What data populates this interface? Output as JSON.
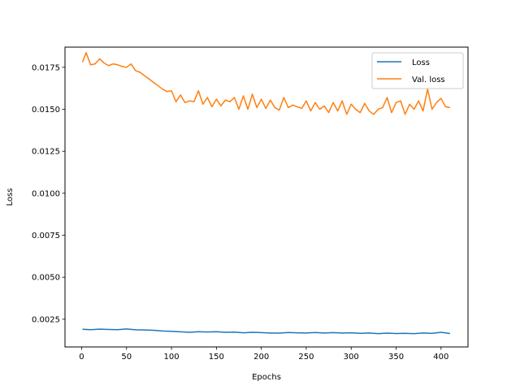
{
  "chart_data": {
    "type": "line",
    "xlabel": "Epochs",
    "ylabel": "Loss",
    "xlim": [
      -18.5,
      430
    ],
    "ylim": [
      0.00085,
      0.0187
    ],
    "xticks": [
      0,
      50,
      100,
      150,
      200,
      250,
      300,
      350,
      400
    ],
    "yticks": [
      0.0025,
      0.005,
      0.0075,
      0.01,
      0.0125,
      0.015,
      0.0175
    ],
    "ytick_labels": [
      "0.0025",
      "0.0050",
      "0.0075",
      "0.0100",
      "0.0125",
      "0.0150",
      "0.0175"
    ],
    "grid": false,
    "legend_position": "top-right",
    "series": [
      {
        "name": "Loss",
        "color": "#1f77b4",
        "x": [
          1,
          10,
          20,
          30,
          40,
          50,
          60,
          70,
          80,
          90,
          100,
          110,
          120,
          130,
          140,
          150,
          160,
          170,
          180,
          190,
          200,
          210,
          220,
          230,
          240,
          250,
          260,
          270,
          280,
          290,
          300,
          310,
          320,
          330,
          340,
          350,
          360,
          370,
          380,
          390,
          400,
          410
        ],
        "y": [
          0.0019,
          0.00188,
          0.00191,
          0.00189,
          0.00188,
          0.00192,
          0.00187,
          0.00186,
          0.00184,
          0.0018,
          0.00178,
          0.00175,
          0.00172,
          0.00176,
          0.00174,
          0.00176,
          0.00172,
          0.00173,
          0.00169,
          0.00172,
          0.0017,
          0.00168,
          0.00167,
          0.00171,
          0.00169,
          0.00168,
          0.00171,
          0.00168,
          0.0017,
          0.00168,
          0.00169,
          0.00166,
          0.00168,
          0.00164,
          0.00167,
          0.00165,
          0.00166,
          0.00164,
          0.00168,
          0.00166,
          0.00172,
          0.00165
        ]
      },
      {
        "name": "Val. loss",
        "color": "#ff7f0e",
        "x": [
          1,
          5,
          10,
          15,
          20,
          25,
          30,
          35,
          40,
          45,
          50,
          55,
          60,
          65,
          70,
          75,
          80,
          85,
          90,
          95,
          100,
          105,
          110,
          115,
          120,
          125,
          130,
          135,
          140,
          145,
          150,
          155,
          160,
          165,
          170,
          175,
          180,
          185,
          190,
          195,
          200,
          205,
          210,
          215,
          220,
          225,
          230,
          235,
          240,
          245,
          250,
          255,
          260,
          265,
          270,
          275,
          280,
          285,
          290,
          295,
          300,
          305,
          310,
          315,
          320,
          325,
          330,
          335,
          340,
          345,
          350,
          355,
          360,
          365,
          370,
          375,
          380,
          385,
          390,
          395,
          400,
          405,
          410
        ],
        "y": [
          0.0178,
          0.01837,
          0.01765,
          0.0177,
          0.018,
          0.01775,
          0.0176,
          0.0177,
          0.01765,
          0.01755,
          0.0175,
          0.0177,
          0.0173,
          0.0172,
          0.017,
          0.0168,
          0.0166,
          0.0164,
          0.0162,
          0.01605,
          0.0161,
          0.01545,
          0.01585,
          0.0154,
          0.0155,
          0.01545,
          0.0161,
          0.0153,
          0.0157,
          0.01515,
          0.0156,
          0.0152,
          0.01555,
          0.01545,
          0.0157,
          0.015,
          0.0158,
          0.015,
          0.0159,
          0.0151,
          0.0156,
          0.01505,
          0.01555,
          0.0151,
          0.01495,
          0.0157,
          0.0151,
          0.01525,
          0.01515,
          0.01505,
          0.0155,
          0.0149,
          0.0154,
          0.015,
          0.0152,
          0.0148,
          0.0154,
          0.0149,
          0.0155,
          0.0147,
          0.0153,
          0.015,
          0.0148,
          0.01535,
          0.0149,
          0.0147,
          0.015,
          0.0151,
          0.0157,
          0.0148,
          0.0154,
          0.0155,
          0.0147,
          0.0153,
          0.015,
          0.0155,
          0.0149,
          0.0162,
          0.015,
          0.0154,
          0.01565,
          0.01515,
          0.0151
        ]
      }
    ]
  }
}
